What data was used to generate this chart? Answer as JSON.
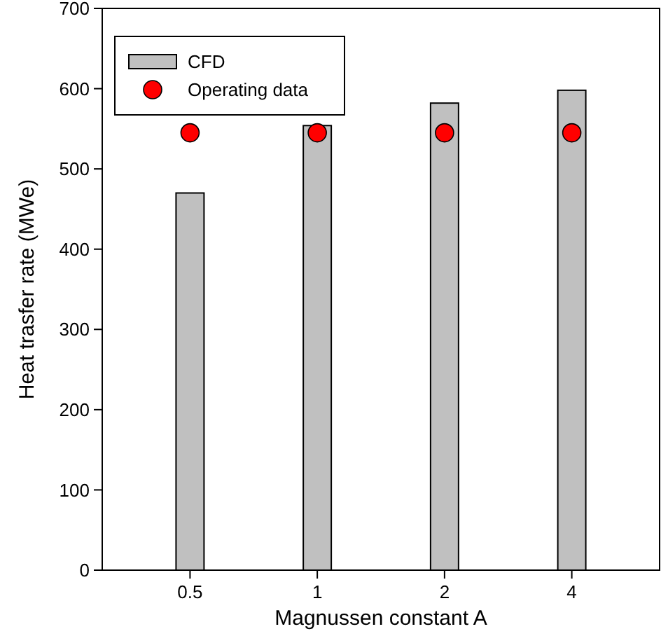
{
  "chart_data": {
    "type": "bar",
    "xlabel": "Magnussen constant A",
    "ylabel": "Heat trasfer rate (MWe)",
    "categories": [
      "0.5",
      "1",
      "2",
      "4"
    ],
    "series": [
      {
        "name": "CFD",
        "color": "#c0c0c0",
        "values": [
          470,
          554,
          582,
          598
        ]
      },
      {
        "name": "Operating data",
        "type": "scatter",
        "color": "#ff0000",
        "marker": "circle",
        "x": [
          "0.5",
          "1",
          "2",
          "4"
        ],
        "values": [
          545,
          545,
          545,
          545
        ]
      }
    ],
    "ylim": [
      0,
      700
    ],
    "yticks": [
      0,
      100,
      200,
      300,
      400,
      500,
      600,
      700
    ],
    "grid": false,
    "legend": "top left"
  }
}
